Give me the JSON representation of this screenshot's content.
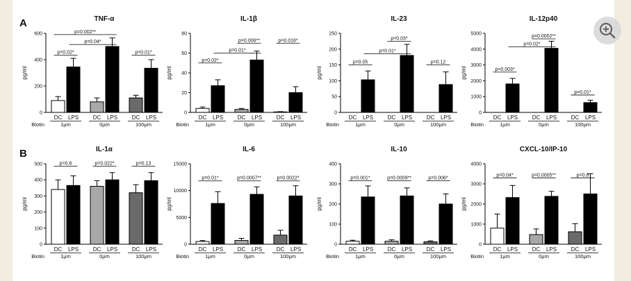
{
  "panel_labels": [
    "A",
    "B"
  ],
  "zoom_icon": "zoom-in-icon",
  "colors": {
    "page_bg": "#f1ede0",
    "figure_bg": "#ffffff",
    "bar_1um_dc": "#ffffff",
    "bar_0um_dc": "#a8a8a8",
    "bar_100um_dc": "#6a6a6a",
    "bar_lps": "#000000"
  },
  "chart_data": [
    {
      "type": "bar",
      "title": "TNF-α",
      "ylabel": "pg/ml",
      "ylim": [
        0,
        600
      ],
      "yticks": [
        0,
        200,
        400,
        600
      ],
      "groups": [
        "1μm",
        "0μm",
        "100μm"
      ],
      "categories": [
        "DC",
        "LPS"
      ],
      "group_prefix": "Biotin",
      "dc": [
        90,
        80,
        110
      ],
      "dc_err": [
        30,
        30,
        20
      ],
      "lps": [
        345,
        500,
        335
      ],
      "lps_err": [
        65,
        65,
        65
      ],
      "brackets": [
        {
          "from": "g0dc",
          "to": "g0lps",
          "label": "p=0.02*",
          "y": 435
        },
        {
          "from": "g0lps",
          "to": "g1lps",
          "label": "p=0.04*",
          "y": 515
        },
        {
          "from": "g0dc",
          "to": "g1lps",
          "label": "p=0.002**",
          "y": 590
        },
        {
          "from": "g2dc",
          "to": "g2lps",
          "label": "p=0.01*",
          "y": 435
        }
      ]
    },
    {
      "type": "bar",
      "title": "IL-1β",
      "ylabel": "pg/ml",
      "ylim": [
        0,
        80
      ],
      "yticks": [
        0,
        20,
        40,
        60,
        80
      ],
      "groups": [
        "1μm",
        "0μm",
        "100μm"
      ],
      "categories": [
        "DC",
        "LPS"
      ],
      "group_prefix": "Biotin",
      "dc": [
        4,
        3,
        0.5
      ],
      "dc_err": [
        1.5,
        1,
        0.3
      ],
      "lps": [
        27,
        53,
        20
      ],
      "lps_err": [
        6,
        9,
        6
      ],
      "brackets": [
        {
          "from": "g0dc",
          "to": "g0lps",
          "label": "p=0.02*",
          "y": 50
        },
        {
          "from": "g0lps",
          "to": "g1lps",
          "label": "p=0.01*",
          "y": 60
        },
        {
          "from": "g1dc",
          "to": "g1lps",
          "label": "p=0.006**",
          "y": 70
        },
        {
          "from": "g2dc",
          "to": "g2lps",
          "label": "p=0.016*",
          "y": 70
        }
      ]
    },
    {
      "type": "bar",
      "title": "IL-23",
      "ylabel": "pg/ml",
      "ylim": [
        0,
        250
      ],
      "yticks": [
        0,
        50,
        100,
        150,
        200,
        250
      ],
      "groups": [
        "1μm",
        "0μm",
        "100μm"
      ],
      "categories": [
        "DC",
        "LPS"
      ],
      "group_prefix": "Biotin",
      "dc": [
        0,
        0,
        0
      ],
      "dc_err": [
        0,
        0,
        0
      ],
      "lps": [
        103,
        180,
        88
      ],
      "lps_err": [
        28,
        35,
        40
      ],
      "brackets": [
        {
          "from": "g0dc",
          "to": "g0lps",
          "label": "p=0.05",
          "y": 150
        },
        {
          "from": "g0lps",
          "to": "g1lps",
          "label": "p=0.01*",
          "y": 185
        },
        {
          "from": "g1dc",
          "to": "g1lps",
          "label": "p=0.03*",
          "y": 225
        },
        {
          "from": "g2dc",
          "to": "g2lps",
          "label": "p=0.12",
          "y": 150
        }
      ]
    },
    {
      "type": "bar",
      "title": "IL-12p40",
      "ylabel": "pg/ml",
      "ylim": [
        0,
        5000
      ],
      "yticks": [
        0,
        1000,
        2000,
        3000,
        4000,
        5000
      ],
      "groups": [
        "1μm",
        "0μm",
        "100μm"
      ],
      "categories": [
        "DC",
        "LPS"
      ],
      "group_prefix": "Biotin",
      "dc": [
        0,
        0,
        0
      ],
      "dc_err": [
        0,
        0,
        0
      ],
      "lps": [
        1800,
        4050,
        620
      ],
      "lps_err": [
        350,
        450,
        150
      ],
      "brackets": [
        {
          "from": "g0dc",
          "to": "g0lps",
          "label": "p=0.003*",
          "y": 2550
        },
        {
          "from": "g0lps",
          "to": "g1lps",
          "label": "p=0.02*",
          "y": 4150
        },
        {
          "from": "g1dc",
          "to": "g1lps",
          "label": "p=0.0002**",
          "y": 4650
        },
        {
          "from": "g2dc",
          "to": "g2lps",
          "label": "p=0.01*",
          "y": 1100
        }
      ]
    },
    {
      "type": "bar",
      "title": "IL-1α",
      "ylabel": "pg/ml",
      "ylim": [
        0,
        500
      ],
      "yticks": [
        0,
        100,
        200,
        300,
        400,
        500
      ],
      "groups": [
        "1μm",
        "0μm",
        "100μm"
      ],
      "categories": [
        "DC",
        "LPS"
      ],
      "group_prefix": "Biotin",
      "dc": [
        340,
        360,
        320
      ],
      "dc_err": [
        60,
        35,
        50
      ],
      "lps": [
        365,
        400,
        395
      ],
      "lps_err": [
        60,
        45,
        50
      ],
      "brackets": [
        {
          "from": "g0dc",
          "to": "g0lps",
          "label": "p=0.6",
          "y": 485
        },
        {
          "from": "g1dc",
          "to": "g1lps",
          "label": "p=0.022*",
          "y": 485
        },
        {
          "from": "g2dc",
          "to": "g2lps",
          "label": "p=0.13",
          "y": 485
        }
      ]
    },
    {
      "type": "bar",
      "title": "IL-6",
      "ylabel": "pg/ml",
      "ylim": [
        0,
        15000
      ],
      "yticks": [
        0,
        5000,
        10000,
        15000
      ],
      "groups": [
        "1μm",
        "0μm",
        "100μm"
      ],
      "categories": [
        "DC",
        "LPS"
      ],
      "group_prefix": "Biotin",
      "dc": [
        500,
        700,
        1700
      ],
      "dc_err": [
        200,
        400,
        900
      ],
      "lps": [
        7600,
        9300,
        9000
      ],
      "lps_err": [
        2200,
        1400,
        1900
      ],
      "brackets": [
        {
          "from": "g0dc",
          "to": "g0lps",
          "label": "p=0.01*",
          "y": 11800
        },
        {
          "from": "g1dc",
          "to": "g1lps",
          "label": "p=0.0007**",
          "y": 11800
        },
        {
          "from": "g2dc",
          "to": "g2lps",
          "label": "p=0.0022*",
          "y": 11800
        }
      ]
    },
    {
      "type": "bar",
      "title": "IL-10",
      "ylabel": "pg/ml",
      "ylim": [
        0,
        400
      ],
      "yticks": [
        0,
        100,
        200,
        300,
        400
      ],
      "groups": [
        "1μm",
        "0μm",
        "100μm"
      ],
      "categories": [
        "DC",
        "LPS"
      ],
      "group_prefix": "Biotin",
      "dc": [
        15,
        15,
        12
      ],
      "dc_err": [
        5,
        7,
        5
      ],
      "lps": [
        235,
        240,
        200
      ],
      "lps_err": [
        55,
        40,
        50
      ],
      "brackets": [
        {
          "from": "g0dc",
          "to": "g0lps",
          "label": "p=0.001*",
          "y": 315
        },
        {
          "from": "g1dc",
          "to": "g1lps",
          "label": "p=0.0009**",
          "y": 315
        },
        {
          "from": "g2dc",
          "to": "g2lps",
          "label": "p=0.006*",
          "y": 315
        }
      ]
    },
    {
      "type": "bar",
      "title": "CXCL-10/IP-10",
      "ylabel": "pg/ml",
      "ylim": [
        0,
        4000
      ],
      "yticks": [
        0,
        1000,
        2000,
        3000,
        4000
      ],
      "groups": [
        "1μm",
        "0μm",
        "100μm"
      ],
      "categories": [
        "DC",
        "LPS"
      ],
      "group_prefix": "Biotin",
      "dc": [
        800,
        480,
        620
      ],
      "dc_err": [
        700,
        280,
        400
      ],
      "lps": [
        2320,
        2380,
        2500
      ],
      "lps_err": [
        600,
        250,
        1000
      ],
      "brackets": [
        {
          "from": "g0dc",
          "to": "g0lps",
          "label": "p=0.04*",
          "y": 3300
        },
        {
          "from": "g1dc",
          "to": "g1lps",
          "label": "p=0.0005**",
          "y": 3300
        },
        {
          "from": "g2dc",
          "to": "g2lps",
          "label": "p=0.8",
          "y": 3300
        }
      ]
    }
  ]
}
